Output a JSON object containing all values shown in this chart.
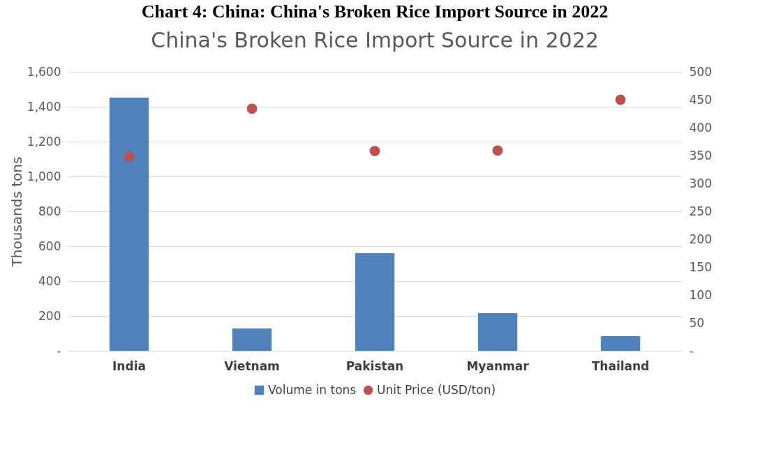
{
  "chart_data": {
    "type": "bar",
    "title": "Chart 4: China: China's Broken Rice Import Source in 2022",
    "subtitle": "China's Broken Rice Import Source in 2022",
    "ylabel": "Thousands tons",
    "categories": [
      "India",
      "Vietnam",
      "Pakistan",
      "Myanmar",
      "Thailand"
    ],
    "series": [
      {
        "name": "Volume in tons",
        "color": "#4f81bd",
        "values": [
          1452,
          128,
          560,
          216,
          84
        ]
      },
      {
        "name": "Unit Price (USD/ton)",
        "type": "scatter",
        "axis": "y2",
        "color": "#c0504d",
        "values": [
          348,
          434,
          358,
          359,
          450
        ]
      }
    ],
    "ylim": [
      0,
      1600
    ],
    "yticks": [
      {
        "value": 0,
        "label": "-"
      },
      200,
      400,
      600,
      800,
      {
        "value": 1000,
        "label": "1,000"
      },
      {
        "value": 1200,
        "label": "1,200"
      },
      {
        "value": 1400,
        "label": "1,400"
      },
      {
        "value": 1600,
        "label": "1,600"
      }
    ],
    "y2lim": [
      0,
      500
    ],
    "y2ticks": [
      {
        "value": 0,
        "label": "-"
      },
      50,
      100,
      150,
      200,
      250,
      300,
      350,
      400,
      450,
      500
    ],
    "grid": "y",
    "legend": "bottom",
    "marker": "circle"
  }
}
